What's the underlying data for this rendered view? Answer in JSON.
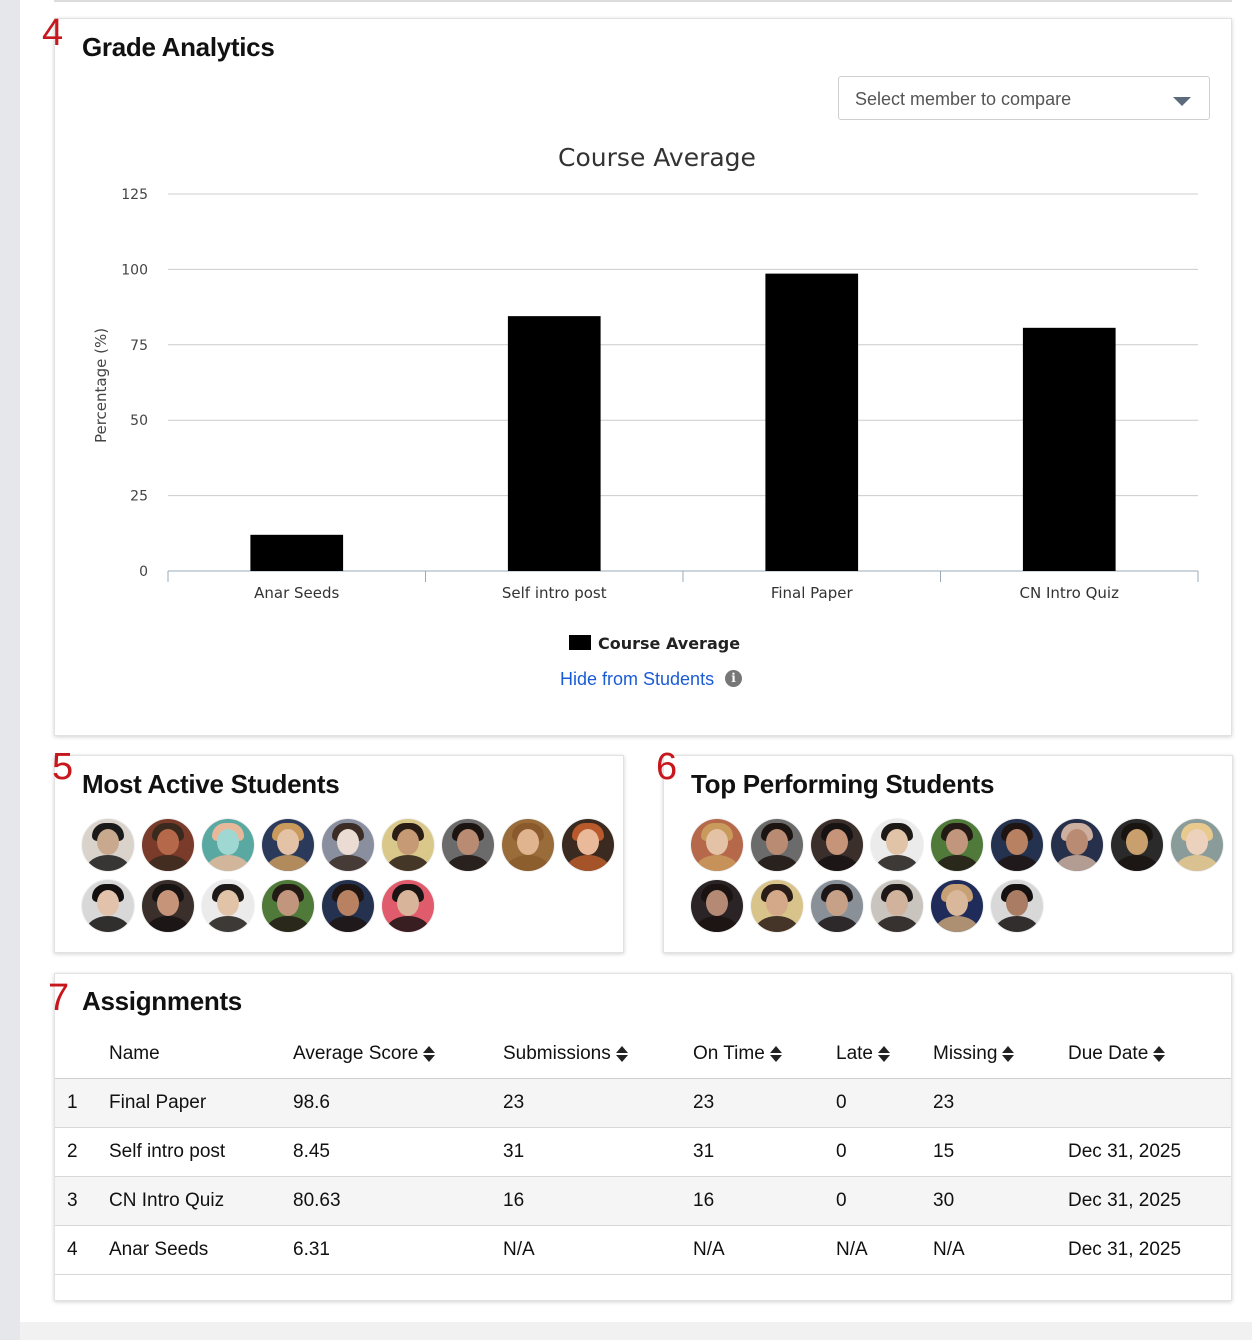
{
  "sections": {
    "grade_analytics": {
      "marker": "4",
      "title": "Grade Analytics"
    },
    "most_active": {
      "marker": "5",
      "title": "Most Active Students"
    },
    "top_performing": {
      "marker": "6",
      "title": "Top Performing Students"
    },
    "assignments": {
      "marker": "7",
      "title": "Assignments"
    }
  },
  "compare_select": {
    "placeholder": "Select member to compare",
    "icon": "chevron-down-icon"
  },
  "hide_link": {
    "label": "Hide from Students",
    "icon": "info-icon",
    "icon_glyph": "i"
  },
  "chart_data": {
    "type": "bar",
    "title": "Course Average",
    "xlabel": "",
    "ylabel": "Percentage (%)",
    "categories": [
      "Anar Seeds",
      "Self intro post",
      "Final Paper",
      "CN Intro Quiz"
    ],
    "series": [
      {
        "name": "Course Average",
        "values": [
          12,
          84.5,
          98.6,
          80.63
        ],
        "color": "#000000"
      }
    ],
    "ylim": [
      0,
      125
    ],
    "yticks": [
      0,
      25,
      50,
      75,
      100,
      125
    ],
    "grid": true,
    "legend": "bottom-center"
  },
  "most_active_students": [
    {
      "colors": [
        "#c9a98e",
        "#1a1a1a",
        "#d9d3cc"
      ]
    },
    {
      "colors": [
        "#b5694a",
        "#3a2a1e",
        "#7a3b2a"
      ]
    },
    {
      "colors": [
        "#9fd8d3",
        "#e8b89a",
        "#5aa8a2"
      ]
    },
    {
      "colors": [
        "#e4c2a6",
        "#c99a5c",
        "#2b3a5a"
      ]
    },
    {
      "colors": [
        "#eadcd2",
        "#3b2d26",
        "#8a8fa0"
      ]
    },
    {
      "colors": [
        "#c59a74",
        "#2a1d16",
        "#d9c889"
      ]
    },
    {
      "colors": [
        "#b98b73",
        "#1c1411",
        "#6b6b6b"
      ]
    },
    {
      "colors": [
        "#e0b48f",
        "#8a5a2c",
        "#9a6c3a"
      ]
    },
    {
      "colors": [
        "#eab999",
        "#b85a2b",
        "#3a2a1f"
      ]
    },
    {
      "colors": [
        "#e2c2ab",
        "#141010",
        "#d8d8d8"
      ]
    },
    {
      "colors": [
        "#c69478",
        "#181313",
        "#3a2f2a"
      ]
    },
    {
      "colors": [
        "#e1c4a8",
        "#1e1a18",
        "#ebebeb"
      ]
    },
    {
      "colors": [
        "#c2967c",
        "#231a15",
        "#4f7a3a"
      ]
    },
    {
      "colors": [
        "#b88262",
        "#1e1512",
        "#24324f"
      ]
    },
    {
      "colors": [
        "#d8b49a",
        "#1a1414",
        "#e05b6b"
      ]
    }
  ],
  "top_performing_students": [
    {
      "colors": [
        "#e4c2a6",
        "#c99a5c",
        "#b5694a"
      ]
    },
    {
      "colors": [
        "#b98b73",
        "#1c1411",
        "#6b6b6b"
      ]
    },
    {
      "colors": [
        "#c69478",
        "#181313",
        "#3a2f2a"
      ]
    },
    {
      "colors": [
        "#e1c4a8",
        "#1e1a18",
        "#ebebeb"
      ]
    },
    {
      "colors": [
        "#c2967c",
        "#231a15",
        "#4f7a3a"
      ]
    },
    {
      "colors": [
        "#b88262",
        "#1e1512",
        "#24324f"
      ]
    },
    {
      "colors": [
        "#b98b73",
        "#cdb0a0",
        "#27304a"
      ]
    },
    {
      "colors": [
        "#c9a06d",
        "#1a1410",
        "#2a2a2a"
      ]
    },
    {
      "colors": [
        "#ecd2bd",
        "#e8c98e",
        "#8a9c9a"
      ]
    },
    {
      "colors": [
        "#b58a74",
        "#1b1212",
        "#2b2426"
      ]
    },
    {
      "colors": [
        "#d4a989",
        "#2a1c16",
        "#d8c38a"
      ]
    },
    {
      "colors": [
        "#c7a088",
        "#1c1616",
        "#8a9098"
      ]
    },
    {
      "colors": [
        "#d1b29c",
        "#1d1717",
        "#c9c4bd"
      ]
    },
    {
      "colors": [
        "#d9b79a",
        "#c7a175",
        "#1f2c5a"
      ]
    },
    {
      "colors": [
        "#a97c63",
        "#151111",
        "#d8d8d8"
      ]
    }
  ],
  "assignments_table": {
    "columns": [
      {
        "label": "",
        "sortable": false
      },
      {
        "label": "Name",
        "sortable": false
      },
      {
        "label": "Average Score",
        "sortable": true
      },
      {
        "label": "Submissions",
        "sortable": true
      },
      {
        "label": "On Time",
        "sortable": true
      },
      {
        "label": "Late",
        "sortable": true
      },
      {
        "label": "Missing",
        "sortable": true
      },
      {
        "label": "Due Date",
        "sortable": true
      }
    ],
    "rows": [
      [
        "1",
        "Final Paper",
        "98.6",
        "23",
        "23",
        "0",
        "23",
        ""
      ],
      [
        "2",
        "Self intro post",
        "8.45",
        "31",
        "31",
        "0",
        "15",
        "Dec 31, 2025"
      ],
      [
        "3",
        "CN Intro Quiz",
        "80.63",
        "16",
        "16",
        "0",
        "30",
        "Dec 31, 2025"
      ],
      [
        "4",
        "Anar Seeds",
        "6.31",
        "N/A",
        "N/A",
        "N/A",
        "N/A",
        "Dec 31, 2025"
      ]
    ]
  }
}
